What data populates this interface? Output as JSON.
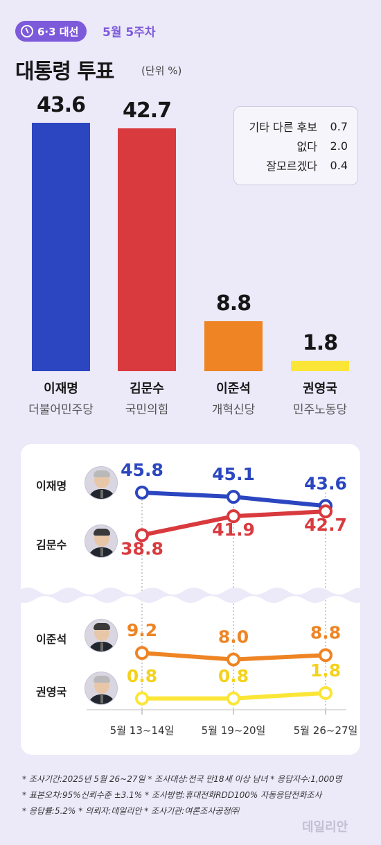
{
  "header": {
    "badge": "6·3 대선",
    "week": "5월 5주차",
    "title": "대통령 투표",
    "unit": "(단위 %)"
  },
  "others": [
    {
      "label": "기타 다른 후보",
      "value": "0.7"
    },
    {
      "label": "없다",
      "value": "2.0"
    },
    {
      "label": "잘모르겠다",
      "value": "0.4"
    }
  ],
  "colors": {
    "lee_jm": "#2b46c0",
    "kim_ms": "#d83a3e",
    "lee_js": "#ee8424",
    "kwon_yg": "#fbe638",
    "accent": "#7d5ad9"
  },
  "chart_data": [
    {
      "type": "bar",
      "categories": [
        "이재명",
        "김문수",
        "이준석",
        "권영국"
      ],
      "parties": [
        "더불어민주당",
        "국민의힘",
        "개혁신당",
        "민주노동당"
      ],
      "values": [
        43.6,
        42.7,
        8.8,
        1.8
      ],
      "value_labels": [
        "43.6",
        "42.7",
        "8.8",
        "1.8"
      ],
      "title": "대통령 투표",
      "unit": "(단위 %)"
    },
    {
      "type": "line",
      "x": [
        "5월 13~14일",
        "5월 19~20일",
        "5월 26~27일"
      ],
      "series": [
        {
          "name": "이재명",
          "values": [
            45.8,
            45.1,
            43.6
          ],
          "labels": [
            "45.8",
            "45.1",
            "43.6"
          ],
          "color": "#2b46c0"
        },
        {
          "name": "김문수",
          "values": [
            38.8,
            41.9,
            42.7
          ],
          "labels": [
            "38.8",
            "41.9",
            "42.7"
          ],
          "color": "#d83a3e"
        },
        {
          "name": "이준석",
          "values": [
            9.2,
            8.0,
            8.8
          ],
          "labels": [
            "9.2",
            "8.0",
            "8.8"
          ],
          "color": "#ee8424"
        },
        {
          "name": "권영국",
          "values": [
            0.8,
            0.8,
            1.8
          ],
          "labels": [
            "0.8",
            "0.8",
            "1.8"
          ],
          "color": "#fbe638"
        }
      ],
      "axis_break": true
    }
  ],
  "notes": [
    "* 조사기간:2025년 5월 26~27일  * 조사대상:전국 만18세 이상 남녀  * 응답자수:1,000명",
    "* 표본오차:95%신뢰수준 ±3.1%  * 조사방법:휴대전화RDD100% 자동응답전화조사",
    "* 응답률:5.2%  * 의뢰자:데일리안  * 조사기관:여론조사공정㈜"
  ],
  "logo": "데일리안"
}
